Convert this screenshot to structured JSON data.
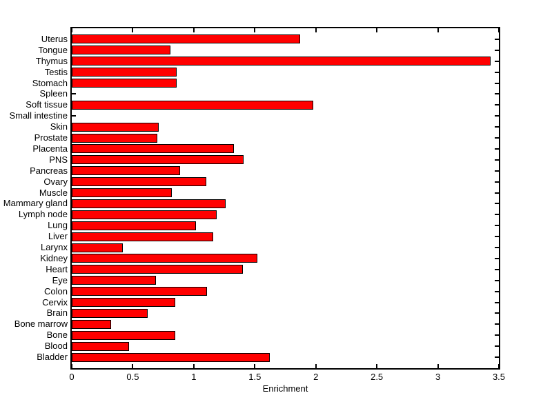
{
  "chart_data": {
    "type": "bar",
    "orientation": "horizontal",
    "title": "",
    "xlabel": "Enrichment",
    "ylabel": "",
    "xlim": [
      0,
      3.5
    ],
    "x_tick_labels": [
      "0",
      "0.5",
      "1",
      "1.5",
      "2",
      "2.5",
      "3",
      "3.5"
    ],
    "x_tick_values": [
      0,
      0.5,
      1,
      1.5,
      2,
      2.5,
      3,
      3.5
    ],
    "grid": false,
    "legend": null,
    "bar_color": "#FF0000",
    "bar_edge_color": "#000000",
    "axis_color": "#000000",
    "background_color": "#FFFFFF",
    "categories": [
      "Uterus",
      "Tongue",
      "Thymus",
      "Testis",
      "Stomach",
      "Spleen",
      "Soft tissue",
      "Small intestine",
      "Skin",
      "Prostate",
      "Placenta",
      "PNS",
      "Pancreas",
      "Ovary",
      "Muscle",
      "Mammary gland",
      "Lymph node",
      "Lung",
      "Liver",
      "Larynx",
      "Kidney",
      "Heart",
      "Eye",
      "Colon",
      "Cervix",
      "Brain",
      "Bone marrow",
      "Bone",
      "Blood",
      "Bladder"
    ],
    "values": [
      1.87,
      0.81,
      3.43,
      0.86,
      0.86,
      0,
      1.98,
      0,
      0.71,
      0.7,
      1.33,
      1.41,
      0.89,
      1.1,
      0.82,
      1.26,
      1.19,
      1.02,
      1.16,
      0.42,
      1.52,
      1.4,
      0.69,
      1.11,
      0.85,
      0.62,
      0.32,
      0.85,
      0.47,
      1.62
    ]
  }
}
